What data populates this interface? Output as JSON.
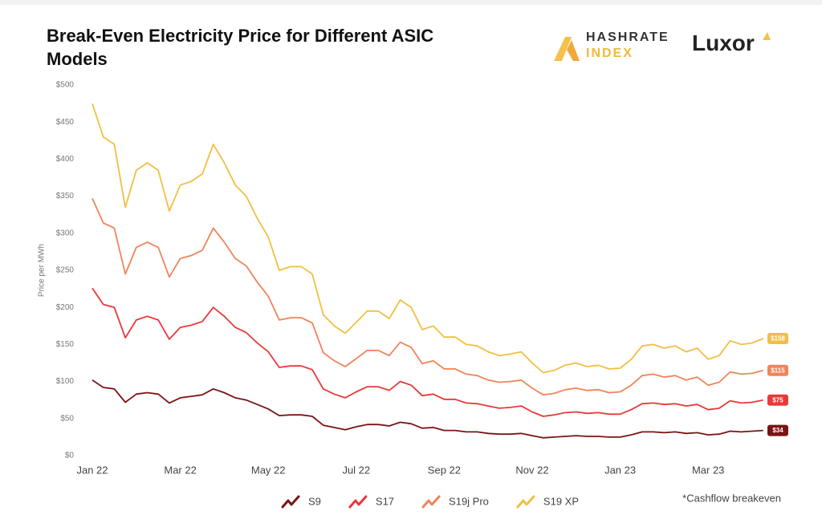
{
  "brand": {
    "hashrate": "HASHRATE",
    "index": "INDEX",
    "luxor": "Luxor"
  },
  "chart_data": {
    "type": "line",
    "title": "Break-Even Electricity Price for Different ASIC Models",
    "y_label": "Price per MWh",
    "note": "*Cashflow breakeven",
    "grid": false,
    "ylim": [
      0,
      500
    ],
    "yticks": [
      {
        "value": 0,
        "label": "$0"
      },
      {
        "value": 50,
        "label": "$50"
      },
      {
        "value": 100,
        "label": "$100"
      },
      {
        "value": 150,
        "label": "$150"
      },
      {
        "value": 200,
        "label": "$200"
      },
      {
        "value": 250,
        "label": "$250"
      },
      {
        "value": 300,
        "label": "$300"
      },
      {
        "value": 350,
        "label": "$350"
      },
      {
        "value": 400,
        "label": "$400"
      },
      {
        "value": 450,
        "label": "$450"
      },
      {
        "value": 500,
        "label": "$500"
      }
    ],
    "categories": [
      "Jan 22",
      null,
      null,
      null,
      null,
      null,
      null,
      null,
      "Mar 22",
      null,
      null,
      null,
      null,
      null,
      null,
      null,
      "May 22",
      null,
      null,
      null,
      null,
      null,
      null,
      null,
      "Jul 22",
      null,
      null,
      null,
      null,
      null,
      null,
      null,
      "Sep 22",
      null,
      null,
      null,
      null,
      null,
      null,
      null,
      "Nov 22",
      null,
      null,
      null,
      null,
      null,
      null,
      null,
      "Jan 23",
      null,
      null,
      null,
      null,
      null,
      null,
      null,
      "Mar 23",
      null,
      null,
      null,
      null,
      null
    ],
    "series": [
      {
        "name": "S9",
        "color": "#7a1414",
        "values": [
          102,
          92,
          90,
          72,
          83,
          85,
          83,
          71,
          78,
          80,
          82,
          90,
          85,
          78,
          75,
          69,
          63,
          54,
          55,
          55,
          53,
          41,
          38,
          35,
          39,
          42,
          42,
          40,
          45,
          43,
          37,
          38,
          34,
          34,
          32,
          32,
          30,
          29,
          29,
          30,
          27,
          24,
          25,
          26,
          27,
          26,
          26,
          25,
          25,
          28,
          32,
          32,
          31,
          32,
          30,
          31,
          28,
          29,
          33,
          32,
          33,
          34
        ],
        "value_labels": [
          null,
          null,
          null,
          null,
          null,
          null,
          null,
          null,
          null,
          null,
          null,
          null,
          null,
          null,
          null,
          null,
          null,
          null,
          null,
          null,
          null,
          null,
          null,
          null,
          null,
          null,
          null,
          null,
          null,
          null,
          null,
          null,
          null,
          null,
          null,
          null,
          null,
          null,
          null,
          null,
          null,
          null,
          null,
          null,
          null,
          null,
          null,
          null,
          null,
          null,
          null,
          null,
          null,
          null,
          null,
          null,
          null,
          null,
          null,
          null,
          null,
          "$34"
        ]
      },
      {
        "name": "S17",
        "color": "#e8393a",
        "values": [
          226,
          204,
          200,
          159,
          183,
          188,
          183,
          157,
          173,
          176,
          181,
          200,
          188,
          173,
          166,
          152,
          140,
          119,
          121,
          121,
          116,
          90,
          83,
          78,
          86,
          93,
          93,
          88,
          100,
          95,
          81,
          83,
          76,
          76,
          71,
          70,
          67,
          64,
          65,
          67,
          59,
          53,
          55,
          58,
          59,
          57,
          58,
          56,
          56,
          62,
          70,
          71,
          69,
          70,
          67,
          69,
          62,
          64,
          74,
          71,
          72,
          75
        ],
        "value_labels": [
          null,
          null,
          null,
          null,
          null,
          null,
          null,
          null,
          null,
          null,
          null,
          null,
          null,
          null,
          null,
          null,
          null,
          null,
          null,
          null,
          null,
          null,
          null,
          null,
          null,
          null,
          null,
          null,
          null,
          null,
          null,
          null,
          null,
          null,
          null,
          null,
          null,
          null,
          null,
          null,
          null,
          null,
          null,
          null,
          null,
          null,
          null,
          null,
          null,
          null,
          null,
          null,
          null,
          null,
          null,
          null,
          null,
          null,
          null,
          null,
          null,
          "$75"
        ]
      },
      {
        "name": "S19j Pro",
        "color": "#f0845a",
        "values": [
          347,
          314,
          307,
          245,
          281,
          288,
          281,
          241,
          266,
          270,
          277,
          307,
          288,
          266,
          256,
          234,
          215,
          183,
          186,
          186,
          179,
          139,
          128,
          120,
          131,
          142,
          142,
          135,
          153,
          146,
          124,
          128,
          117,
          117,
          110,
          108,
          102,
          99,
          100,
          102,
          91,
          82,
          84,
          89,
          91,
          88,
          89,
          85,
          86,
          95,
          108,
          110,
          106,
          108,
          102,
          106,
          95,
          99,
          113,
          110,
          111,
          115
        ],
        "value_labels": [
          null,
          null,
          null,
          null,
          null,
          null,
          null,
          null,
          null,
          null,
          null,
          null,
          null,
          null,
          null,
          null,
          null,
          null,
          null,
          null,
          null,
          null,
          null,
          null,
          null,
          null,
          null,
          null,
          null,
          null,
          null,
          null,
          null,
          null,
          null,
          null,
          null,
          null,
          null,
          null,
          null,
          null,
          null,
          null,
          null,
          null,
          null,
          null,
          null,
          null,
          null,
          null,
          null,
          null,
          null,
          null,
          null,
          null,
          null,
          null,
          null,
          "$115"
        ]
      },
      {
        "name": "S19 XP",
        "color": "#f2bf42",
        "values": [
          475,
          430,
          420,
          335,
          385,
          395,
          385,
          330,
          365,
          370,
          380,
          420,
          395,
          365,
          350,
          320,
          295,
          250,
          255,
          255,
          245,
          190,
          175,
          165,
          180,
          195,
          195,
          185,
          210,
          200,
          170,
          175,
          160,
          160,
          150,
          148,
          140,
          135,
          137,
          140,
          125,
          112,
          115,
          122,
          125,
          120,
          122,
          117,
          118,
          130,
          148,
          150,
          145,
          148,
          140,
          145,
          130,
          135,
          155,
          150,
          152,
          158
        ],
        "value_labels": [
          null,
          null,
          null,
          null,
          null,
          null,
          null,
          null,
          null,
          null,
          null,
          null,
          null,
          null,
          null,
          null,
          null,
          null,
          null,
          null,
          null,
          null,
          null,
          null,
          null,
          null,
          null,
          null,
          null,
          null,
          null,
          null,
          null,
          null,
          null,
          null,
          null,
          null,
          null,
          null,
          null,
          null,
          null,
          null,
          null,
          null,
          null,
          null,
          null,
          null,
          null,
          null,
          null,
          null,
          null,
          null,
          null,
          null,
          null,
          null,
          null,
          "$158"
        ]
      }
    ]
  }
}
